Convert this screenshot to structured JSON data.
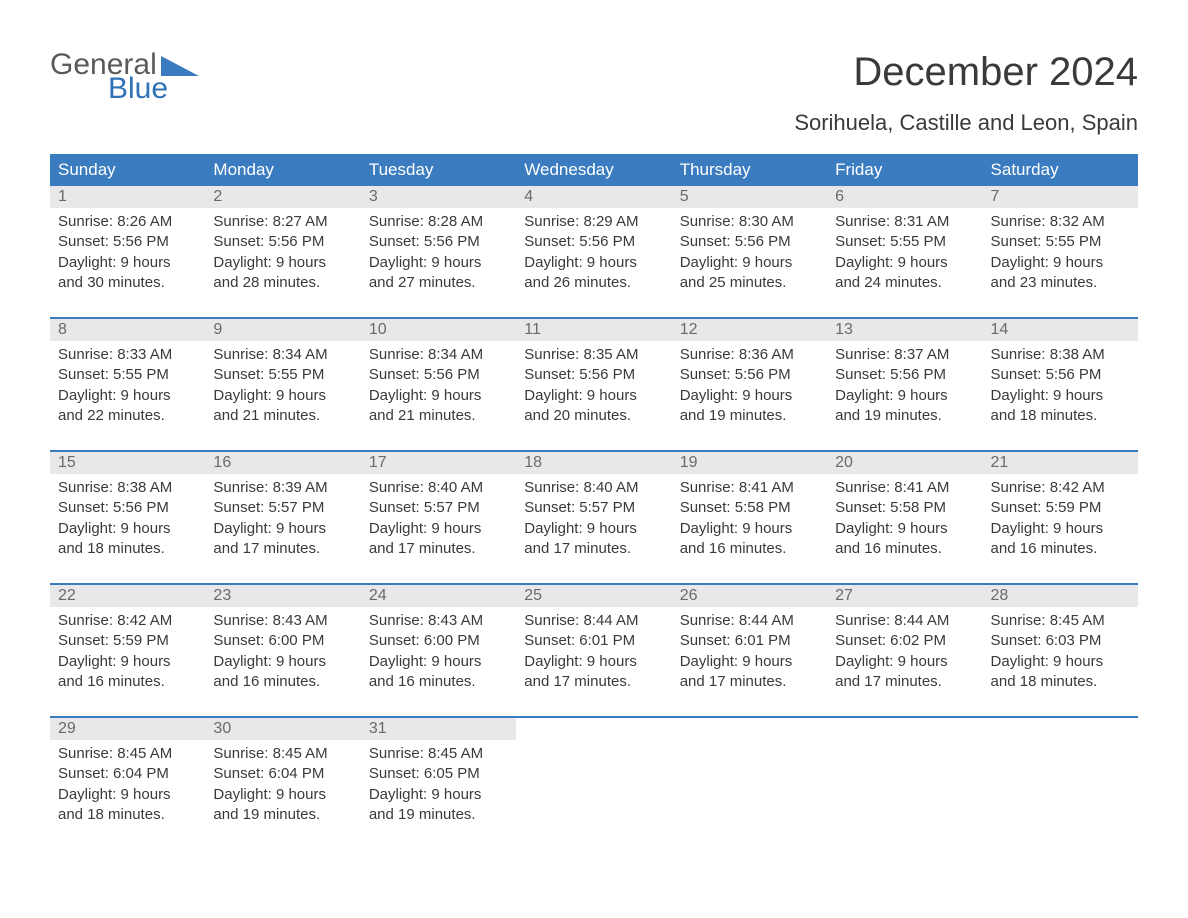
{
  "logo": {
    "word1": "General",
    "word2": "Blue"
  },
  "title": "December 2024",
  "location": "Sorihuela, Castille and Leon, Spain",
  "colors": {
    "header_bg": "#3a7cbf",
    "header_text": "#ffffff",
    "daynum_bg": "#e8e8e8",
    "daynum_text": "#6a6a6a",
    "body_text": "#3a3a3a",
    "page_bg": "#ffffff",
    "week_border": "#3a7cbf",
    "logo_gray": "#5a5a5a",
    "logo_blue": "#2f72b8"
  },
  "typography": {
    "title_fontsize": 40,
    "location_fontsize": 22,
    "dayheader_fontsize": 17,
    "daynum_fontsize": 16,
    "body_fontsize": 15,
    "logo_fontsize": 30
  },
  "day_headers": [
    "Sunday",
    "Monday",
    "Tuesday",
    "Wednesday",
    "Thursday",
    "Friday",
    "Saturday"
  ],
  "weeks": [
    [
      {
        "n": "1",
        "sunrise": "Sunrise: 8:26 AM",
        "sunset": "Sunset: 5:56 PM",
        "d1": "Daylight: 9 hours",
        "d2": "and 30 minutes."
      },
      {
        "n": "2",
        "sunrise": "Sunrise: 8:27 AM",
        "sunset": "Sunset: 5:56 PM",
        "d1": "Daylight: 9 hours",
        "d2": "and 28 minutes."
      },
      {
        "n": "3",
        "sunrise": "Sunrise: 8:28 AM",
        "sunset": "Sunset: 5:56 PM",
        "d1": "Daylight: 9 hours",
        "d2": "and 27 minutes."
      },
      {
        "n": "4",
        "sunrise": "Sunrise: 8:29 AM",
        "sunset": "Sunset: 5:56 PM",
        "d1": "Daylight: 9 hours",
        "d2": "and 26 minutes."
      },
      {
        "n": "5",
        "sunrise": "Sunrise: 8:30 AM",
        "sunset": "Sunset: 5:56 PM",
        "d1": "Daylight: 9 hours",
        "d2": "and 25 minutes."
      },
      {
        "n": "6",
        "sunrise": "Sunrise: 8:31 AM",
        "sunset": "Sunset: 5:55 PM",
        "d1": "Daylight: 9 hours",
        "d2": "and 24 minutes."
      },
      {
        "n": "7",
        "sunrise": "Sunrise: 8:32 AM",
        "sunset": "Sunset: 5:55 PM",
        "d1": "Daylight: 9 hours",
        "d2": "and 23 minutes."
      }
    ],
    [
      {
        "n": "8",
        "sunrise": "Sunrise: 8:33 AM",
        "sunset": "Sunset: 5:55 PM",
        "d1": "Daylight: 9 hours",
        "d2": "and 22 minutes."
      },
      {
        "n": "9",
        "sunrise": "Sunrise: 8:34 AM",
        "sunset": "Sunset: 5:55 PM",
        "d1": "Daylight: 9 hours",
        "d2": "and 21 minutes."
      },
      {
        "n": "10",
        "sunrise": "Sunrise: 8:34 AM",
        "sunset": "Sunset: 5:56 PM",
        "d1": "Daylight: 9 hours",
        "d2": "and 21 minutes."
      },
      {
        "n": "11",
        "sunrise": "Sunrise: 8:35 AM",
        "sunset": "Sunset: 5:56 PM",
        "d1": "Daylight: 9 hours",
        "d2": "and 20 minutes."
      },
      {
        "n": "12",
        "sunrise": "Sunrise: 8:36 AM",
        "sunset": "Sunset: 5:56 PM",
        "d1": "Daylight: 9 hours",
        "d2": "and 19 minutes."
      },
      {
        "n": "13",
        "sunrise": "Sunrise: 8:37 AM",
        "sunset": "Sunset: 5:56 PM",
        "d1": "Daylight: 9 hours",
        "d2": "and 19 minutes."
      },
      {
        "n": "14",
        "sunrise": "Sunrise: 8:38 AM",
        "sunset": "Sunset: 5:56 PM",
        "d1": "Daylight: 9 hours",
        "d2": "and 18 minutes."
      }
    ],
    [
      {
        "n": "15",
        "sunrise": "Sunrise: 8:38 AM",
        "sunset": "Sunset: 5:56 PM",
        "d1": "Daylight: 9 hours",
        "d2": "and 18 minutes."
      },
      {
        "n": "16",
        "sunrise": "Sunrise: 8:39 AM",
        "sunset": "Sunset: 5:57 PM",
        "d1": "Daylight: 9 hours",
        "d2": "and 17 minutes."
      },
      {
        "n": "17",
        "sunrise": "Sunrise: 8:40 AM",
        "sunset": "Sunset: 5:57 PM",
        "d1": "Daylight: 9 hours",
        "d2": "and 17 minutes."
      },
      {
        "n": "18",
        "sunrise": "Sunrise: 8:40 AM",
        "sunset": "Sunset: 5:57 PM",
        "d1": "Daylight: 9 hours",
        "d2": "and 17 minutes."
      },
      {
        "n": "19",
        "sunrise": "Sunrise: 8:41 AM",
        "sunset": "Sunset: 5:58 PM",
        "d1": "Daylight: 9 hours",
        "d2": "and 16 minutes."
      },
      {
        "n": "20",
        "sunrise": "Sunrise: 8:41 AM",
        "sunset": "Sunset: 5:58 PM",
        "d1": "Daylight: 9 hours",
        "d2": "and 16 minutes."
      },
      {
        "n": "21",
        "sunrise": "Sunrise: 8:42 AM",
        "sunset": "Sunset: 5:59 PM",
        "d1": "Daylight: 9 hours",
        "d2": "and 16 minutes."
      }
    ],
    [
      {
        "n": "22",
        "sunrise": "Sunrise: 8:42 AM",
        "sunset": "Sunset: 5:59 PM",
        "d1": "Daylight: 9 hours",
        "d2": "and 16 minutes."
      },
      {
        "n": "23",
        "sunrise": "Sunrise: 8:43 AM",
        "sunset": "Sunset: 6:00 PM",
        "d1": "Daylight: 9 hours",
        "d2": "and 16 minutes."
      },
      {
        "n": "24",
        "sunrise": "Sunrise: 8:43 AM",
        "sunset": "Sunset: 6:00 PM",
        "d1": "Daylight: 9 hours",
        "d2": "and 16 minutes."
      },
      {
        "n": "25",
        "sunrise": "Sunrise: 8:44 AM",
        "sunset": "Sunset: 6:01 PM",
        "d1": "Daylight: 9 hours",
        "d2": "and 17 minutes."
      },
      {
        "n": "26",
        "sunrise": "Sunrise: 8:44 AM",
        "sunset": "Sunset: 6:01 PM",
        "d1": "Daylight: 9 hours",
        "d2": "and 17 minutes."
      },
      {
        "n": "27",
        "sunrise": "Sunrise: 8:44 AM",
        "sunset": "Sunset: 6:02 PM",
        "d1": "Daylight: 9 hours",
        "d2": "and 17 minutes."
      },
      {
        "n": "28",
        "sunrise": "Sunrise: 8:45 AM",
        "sunset": "Sunset: 6:03 PM",
        "d1": "Daylight: 9 hours",
        "d2": "and 18 minutes."
      }
    ],
    [
      {
        "n": "29",
        "sunrise": "Sunrise: 8:45 AM",
        "sunset": "Sunset: 6:04 PM",
        "d1": "Daylight: 9 hours",
        "d2": "and 18 minutes."
      },
      {
        "n": "30",
        "sunrise": "Sunrise: 8:45 AM",
        "sunset": "Sunset: 6:04 PM",
        "d1": "Daylight: 9 hours",
        "d2": "and 19 minutes."
      },
      {
        "n": "31",
        "sunrise": "Sunrise: 8:45 AM",
        "sunset": "Sunset: 6:05 PM",
        "d1": "Daylight: 9 hours",
        "d2": "and 19 minutes."
      },
      {
        "n": "",
        "sunrise": "",
        "sunset": "",
        "d1": "",
        "d2": ""
      },
      {
        "n": "",
        "sunrise": "",
        "sunset": "",
        "d1": "",
        "d2": ""
      },
      {
        "n": "",
        "sunrise": "",
        "sunset": "",
        "d1": "",
        "d2": ""
      },
      {
        "n": "",
        "sunrise": "",
        "sunset": "",
        "d1": "",
        "d2": ""
      }
    ]
  ]
}
